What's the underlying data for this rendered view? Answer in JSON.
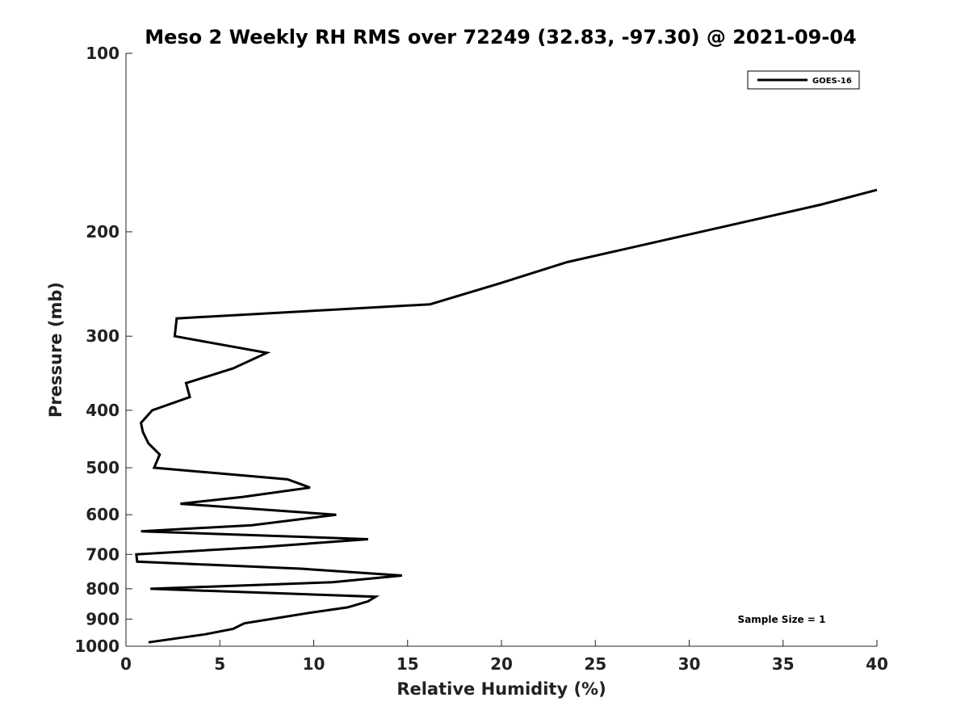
{
  "chart_data": {
    "type": "line",
    "title": "Meso 2 Weekly RH RMS over 72249 (32.83, -97.30) @ 2021-09-04",
    "xlabel": "Relative Humidity (%)",
    "ylabel": "Pressure (mb)",
    "xlim": [
      0,
      40
    ],
    "ylim": [
      100,
      1000
    ],
    "y_scale": "log",
    "y_reversed": true,
    "x_ticks": [
      0,
      5,
      10,
      15,
      20,
      25,
      30,
      35,
      40
    ],
    "y_ticks": [
      100,
      200,
      300,
      400,
      500,
      600,
      700,
      800,
      900,
      1000
    ],
    "grid": false,
    "legend_position": "top-right",
    "annotation": "Sample Size = 1",
    "series": [
      {
        "name": "GOES-16",
        "color": "#000000",
        "points": [
          {
            "x": 1.2,
            "y": 985
          },
          {
            "x": 4.2,
            "y": 955
          },
          {
            "x": 5.7,
            "y": 935
          },
          {
            "x": 6.3,
            "y": 915
          },
          {
            "x": 9.6,
            "y": 880
          },
          {
            "x": 11.8,
            "y": 860
          },
          {
            "x": 12.9,
            "y": 840
          },
          {
            "x": 13.3,
            "y": 825
          },
          {
            "x": 1.3,
            "y": 800
          },
          {
            "x": 11.0,
            "y": 780
          },
          {
            "x": 14.7,
            "y": 760
          },
          {
            "x": 9.3,
            "y": 740
          },
          {
            "x": 0.6,
            "y": 720
          },
          {
            "x": 0.55,
            "y": 700
          },
          {
            "x": 7.3,
            "y": 680
          },
          {
            "x": 12.9,
            "y": 660
          },
          {
            "x": 0.8,
            "y": 640
          },
          {
            "x": 6.7,
            "y": 625
          },
          {
            "x": 11.2,
            "y": 600
          },
          {
            "x": 2.9,
            "y": 575
          },
          {
            "x": 6.2,
            "y": 560
          },
          {
            "x": 9.8,
            "y": 540
          },
          {
            "x": 8.6,
            "y": 523
          },
          {
            "x": 1.5,
            "y": 500
          },
          {
            "x": 1.8,
            "y": 475
          },
          {
            "x": 1.2,
            "y": 455
          },
          {
            "x": 0.9,
            "y": 435
          },
          {
            "x": 0.8,
            "y": 420
          },
          {
            "x": 1.4,
            "y": 400
          },
          {
            "x": 3.4,
            "y": 380
          },
          {
            "x": 3.2,
            "y": 360
          },
          {
            "x": 5.7,
            "y": 340
          },
          {
            "x": 7.5,
            "y": 320
          },
          {
            "x": 2.6,
            "y": 300
          },
          {
            "x": 2.7,
            "y": 280
          },
          {
            "x": 16.2,
            "y": 265
          },
          {
            "x": 19.8,
            "y": 245
          },
          {
            "x": 23.5,
            "y": 225
          },
          {
            "x": 37.0,
            "y": 180
          },
          {
            "x": 40.0,
            "y": 170
          }
        ]
      }
    ]
  }
}
